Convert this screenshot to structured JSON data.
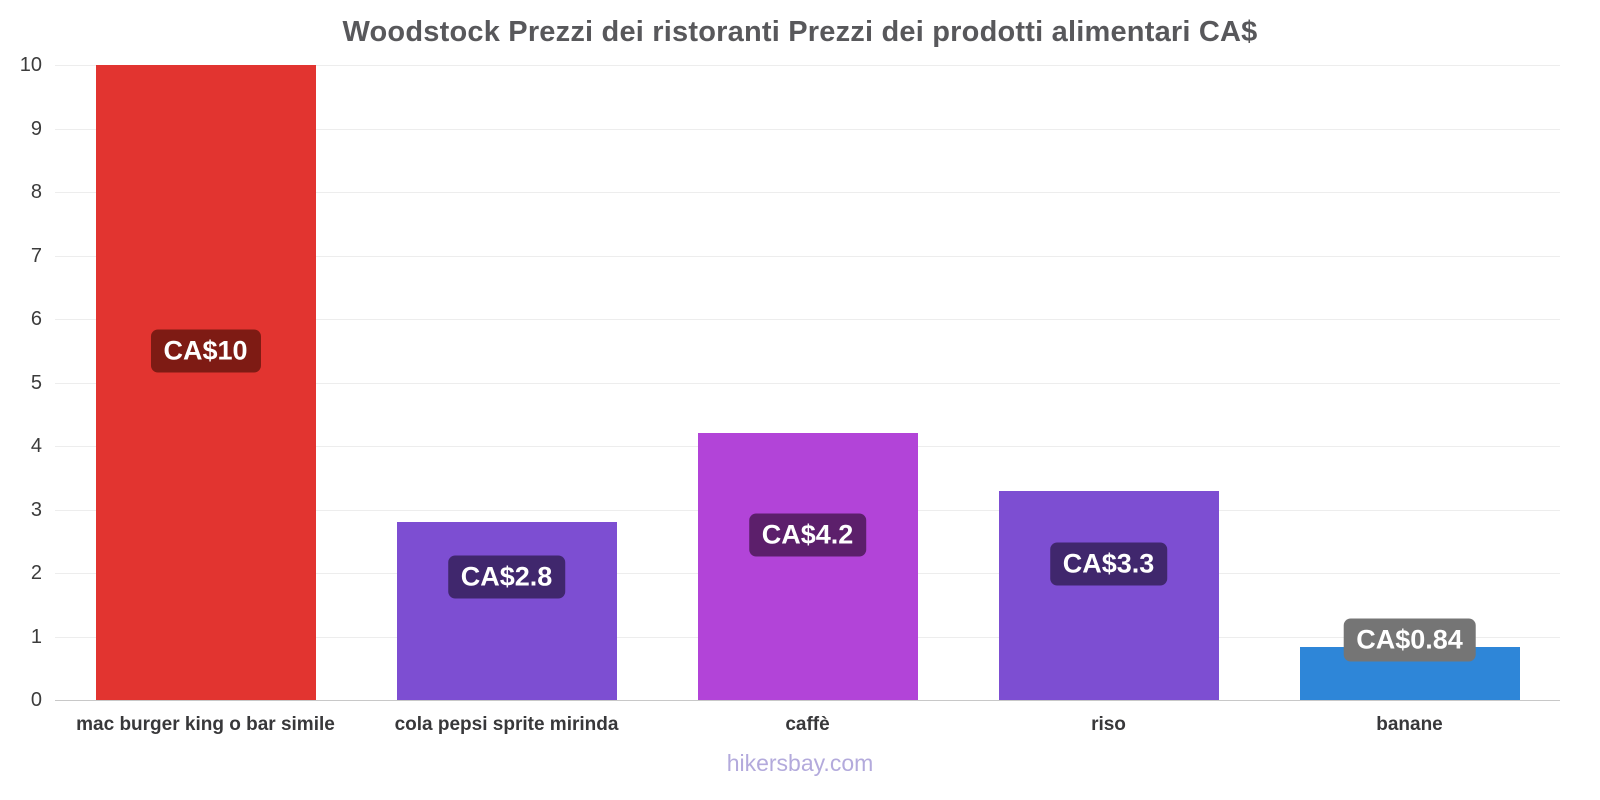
{
  "footer": "hikersbay.com",
  "chart_data": {
    "type": "bar",
    "title": "Woodstock Prezzi dei ristoranti Prezzi dei prodotti alimentari CA$",
    "categories": [
      "mac burger king o bar simile",
      "cola pepsi sprite mirinda",
      "caffè",
      "riso",
      "banane"
    ],
    "values": [
      10,
      2.8,
      4.2,
      3.3,
      0.84
    ],
    "value_labels": [
      "CA$10",
      "CA$2.8",
      "CA$4.2",
      "CA$3.3",
      "CA$0.84"
    ],
    "bar_colors": [
      "#e23430",
      "#7d4ed2",
      "#b244d8",
      "#7d4ed2",
      "#2e86d8"
    ],
    "label_bg_colors": [
      "#7e1b14",
      "#40276d",
      "#5c1f6b",
      "#40276d",
      "#757575"
    ],
    "label_offset_frac": [
      0.45,
      0.31,
      0.38,
      0.35,
      -0.12
    ],
    "xlabel": "",
    "ylabel": "",
    "ylim": [
      0,
      10
    ],
    "yticks": [
      0,
      1,
      2,
      3,
      4,
      5,
      6,
      7,
      8,
      9,
      10
    ],
    "grid": true,
    "legend": null
  }
}
